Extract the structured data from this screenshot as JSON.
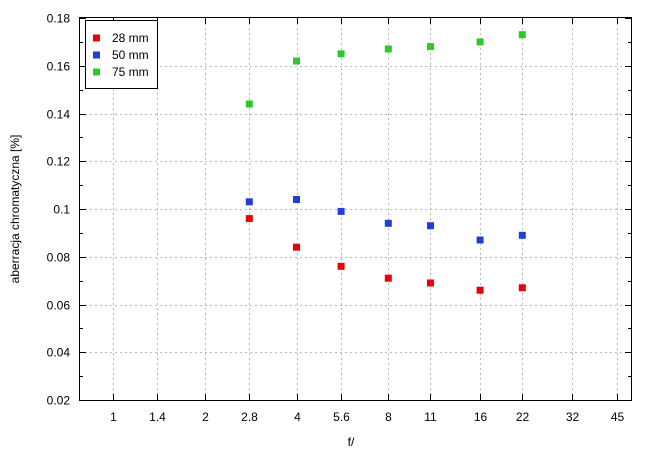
{
  "chart_data": {
    "type": "scatter",
    "title": "",
    "xlabel": "f/",
    "ylabel": "aberracja chromatyczna [%]",
    "x_scale": "log",
    "x_ticks": [
      "1",
      "1.4",
      "2",
      "2.8",
      "4",
      "5.6",
      "8",
      "11",
      "16",
      "22",
      "32",
      "45"
    ],
    "x_tick_values": [
      1,
      1.4,
      2,
      2.8,
      4,
      5.6,
      8,
      11,
      16,
      22,
      32,
      45
    ],
    "xlim": [
      0.78,
      50
    ],
    "ylim": [
      0.02,
      0.18
    ],
    "y_ticks": [
      "0.02",
      "0.04",
      "0.06",
      "0.08",
      "0.1",
      "0.12",
      "0.14",
      "0.16",
      "0.18"
    ],
    "y_tick_values": [
      0.02,
      0.04,
      0.06,
      0.08,
      0.1,
      0.12,
      0.14,
      0.16,
      0.18
    ],
    "grid": true,
    "legend_position": "top-left",
    "series": [
      {
        "name": "28 mm",
        "color": "#e8000b",
        "marker": "square",
        "points": [
          {
            "x": 2.8,
            "y": 0.096
          },
          {
            "x": 4,
            "y": 0.084
          },
          {
            "x": 5.6,
            "y": 0.076
          },
          {
            "x": 8,
            "y": 0.071
          },
          {
            "x": 11,
            "y": 0.069
          },
          {
            "x": 16,
            "y": 0.066
          },
          {
            "x": 22,
            "y": 0.067
          }
        ]
      },
      {
        "name": "50 mm",
        "color": "#1f3fd6",
        "marker": "square",
        "points": [
          {
            "x": 2.8,
            "y": 0.103
          },
          {
            "x": 4,
            "y": 0.104
          },
          {
            "x": 5.6,
            "y": 0.099
          },
          {
            "x": 8,
            "y": 0.094
          },
          {
            "x": 11,
            "y": 0.093
          },
          {
            "x": 16,
            "y": 0.087
          },
          {
            "x": 22,
            "y": 0.089
          }
        ]
      },
      {
        "name": "75 mm",
        "color": "#2ec82e",
        "marker": "square",
        "points": [
          {
            "x": 2.8,
            "y": 0.144
          },
          {
            "x": 4,
            "y": 0.162
          },
          {
            "x": 5.6,
            "y": 0.165
          },
          {
            "x": 8,
            "y": 0.167
          },
          {
            "x": 11,
            "y": 0.168
          },
          {
            "x": 16,
            "y": 0.17
          },
          {
            "x": 22,
            "y": 0.173
          }
        ]
      }
    ]
  }
}
